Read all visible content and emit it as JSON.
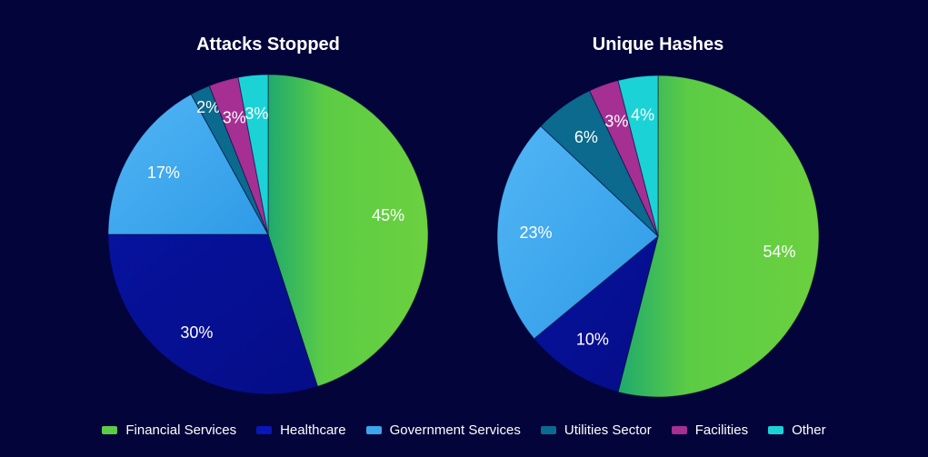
{
  "colors": {
    "background": "#03043a",
    "Financial Services": "#5ccc45",
    "Healthcare": "#06119a",
    "Government Services": "#3aa6ee",
    "Utilities Sector": "#0b6a8e",
    "Facilities": "#a52f93",
    "Other": "#1bd3d6"
  },
  "legend": {
    "items": [
      "Financial Services",
      "Healthcare",
      "Government Services",
      "Utilities Sector",
      "Facilities",
      "Other"
    ]
  },
  "chart_data": [
    {
      "type": "pie",
      "title": "Attacks Stopped",
      "categories": [
        "Financial Services",
        "Healthcare",
        "Government Services",
        "Utilities Sector",
        "Facilities",
        "Other"
      ],
      "values": [
        45,
        30,
        17,
        2,
        3,
        3
      ],
      "labels": [
        "45%",
        "30%",
        "17%",
        "2%",
        "3%",
        "3%"
      ],
      "legend_position": "bottom"
    },
    {
      "type": "pie",
      "title": "Unique Hashes",
      "categories": [
        "Financial Services",
        "Healthcare",
        "Government Services",
        "Utilities Sector",
        "Facilities",
        "Other"
      ],
      "values": [
        54,
        10,
        23,
        6,
        3,
        4
      ],
      "labels": [
        "54%",
        "10%",
        "23%",
        "6%",
        "3%",
        "4%"
      ],
      "legend_position": "bottom"
    }
  ]
}
